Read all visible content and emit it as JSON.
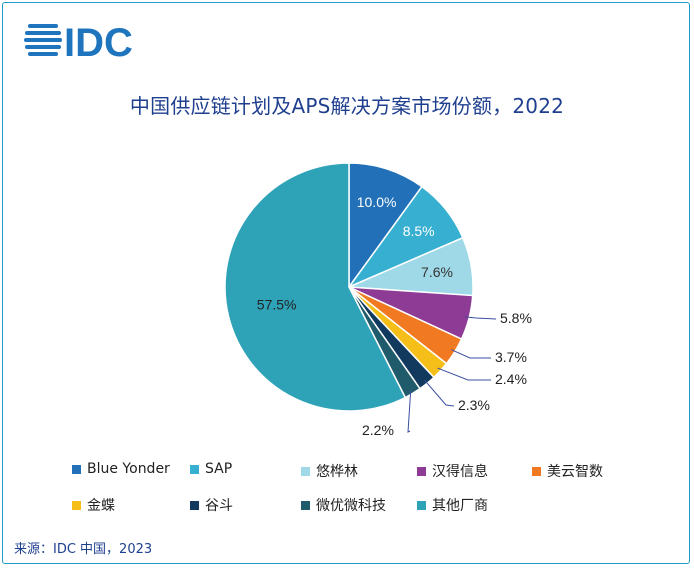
{
  "logo": {
    "text": "IDC",
    "color": "#1e75bd"
  },
  "chart_data": {
    "type": "pie",
    "title": "中国供应链计划及APS解决方案市场份额，2022",
    "series": [
      {
        "name": "Blue Yonder",
        "value": 10.0,
        "label": "10.0%",
        "color": "#2170b8"
      },
      {
        "name": "SAP",
        "value": 8.5,
        "label": "8.5%",
        "color": "#36afd1"
      },
      {
        "name": "悠桦林",
        "value": 7.6,
        "label": "7.6%",
        "color": "#9fd9e8"
      },
      {
        "name": "汉得信息",
        "value": 5.8,
        "label": "5.8%",
        "color": "#8e3b96"
      },
      {
        "name": "美云智数",
        "value": 3.7,
        "label": "3.7%",
        "color": "#f07922"
      },
      {
        "name": "金蝶",
        "value": 2.4,
        "label": "2.4%",
        "color": "#f5be19"
      },
      {
        "name": "谷斗",
        "value": 2.3,
        "label": "2.3%",
        "color": "#123a5e"
      },
      {
        "name": "微优微科技",
        "value": 2.2,
        "label": "2.2%",
        "color": "#205b6b"
      },
      {
        "name": "其他厂商",
        "value": 57.5,
        "label": "57.5%",
        "color": "#2ea3b8"
      }
    ],
    "legend_position": "bottom"
  },
  "source": "来源：IDC 中国，2023"
}
